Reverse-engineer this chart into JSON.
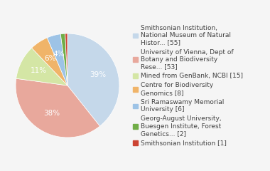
{
  "labels": [
    "Smithsonian Institution,\nNational Museum of Natural\nHistor... [55]",
    "University of Vienna, Dept of\nBotany and Biodiversity\nRese... [53]",
    "Mined from GenBank, NCBI [15]",
    "Centre for Biodiversity\nGenomics [8]",
    "Sri Ramaswamy Memorial\nUniversity [6]",
    "Georg-August University,\nBuesgen Institute, Forest\nGenetics... [2]",
    "Smithsonian Institution [1]"
  ],
  "values": [
    55,
    53,
    15,
    8,
    6,
    2,
    1
  ],
  "colors": [
    "#c5d8ea",
    "#e8a89c",
    "#d4e6a5",
    "#f0b469",
    "#9dc3e6",
    "#70ad47",
    "#cc4433"
  ],
  "background_color": "#f5f5f5",
  "text_color": "#404040",
  "fontsize": 6.5,
  "pct_fontsize": 7.5
}
